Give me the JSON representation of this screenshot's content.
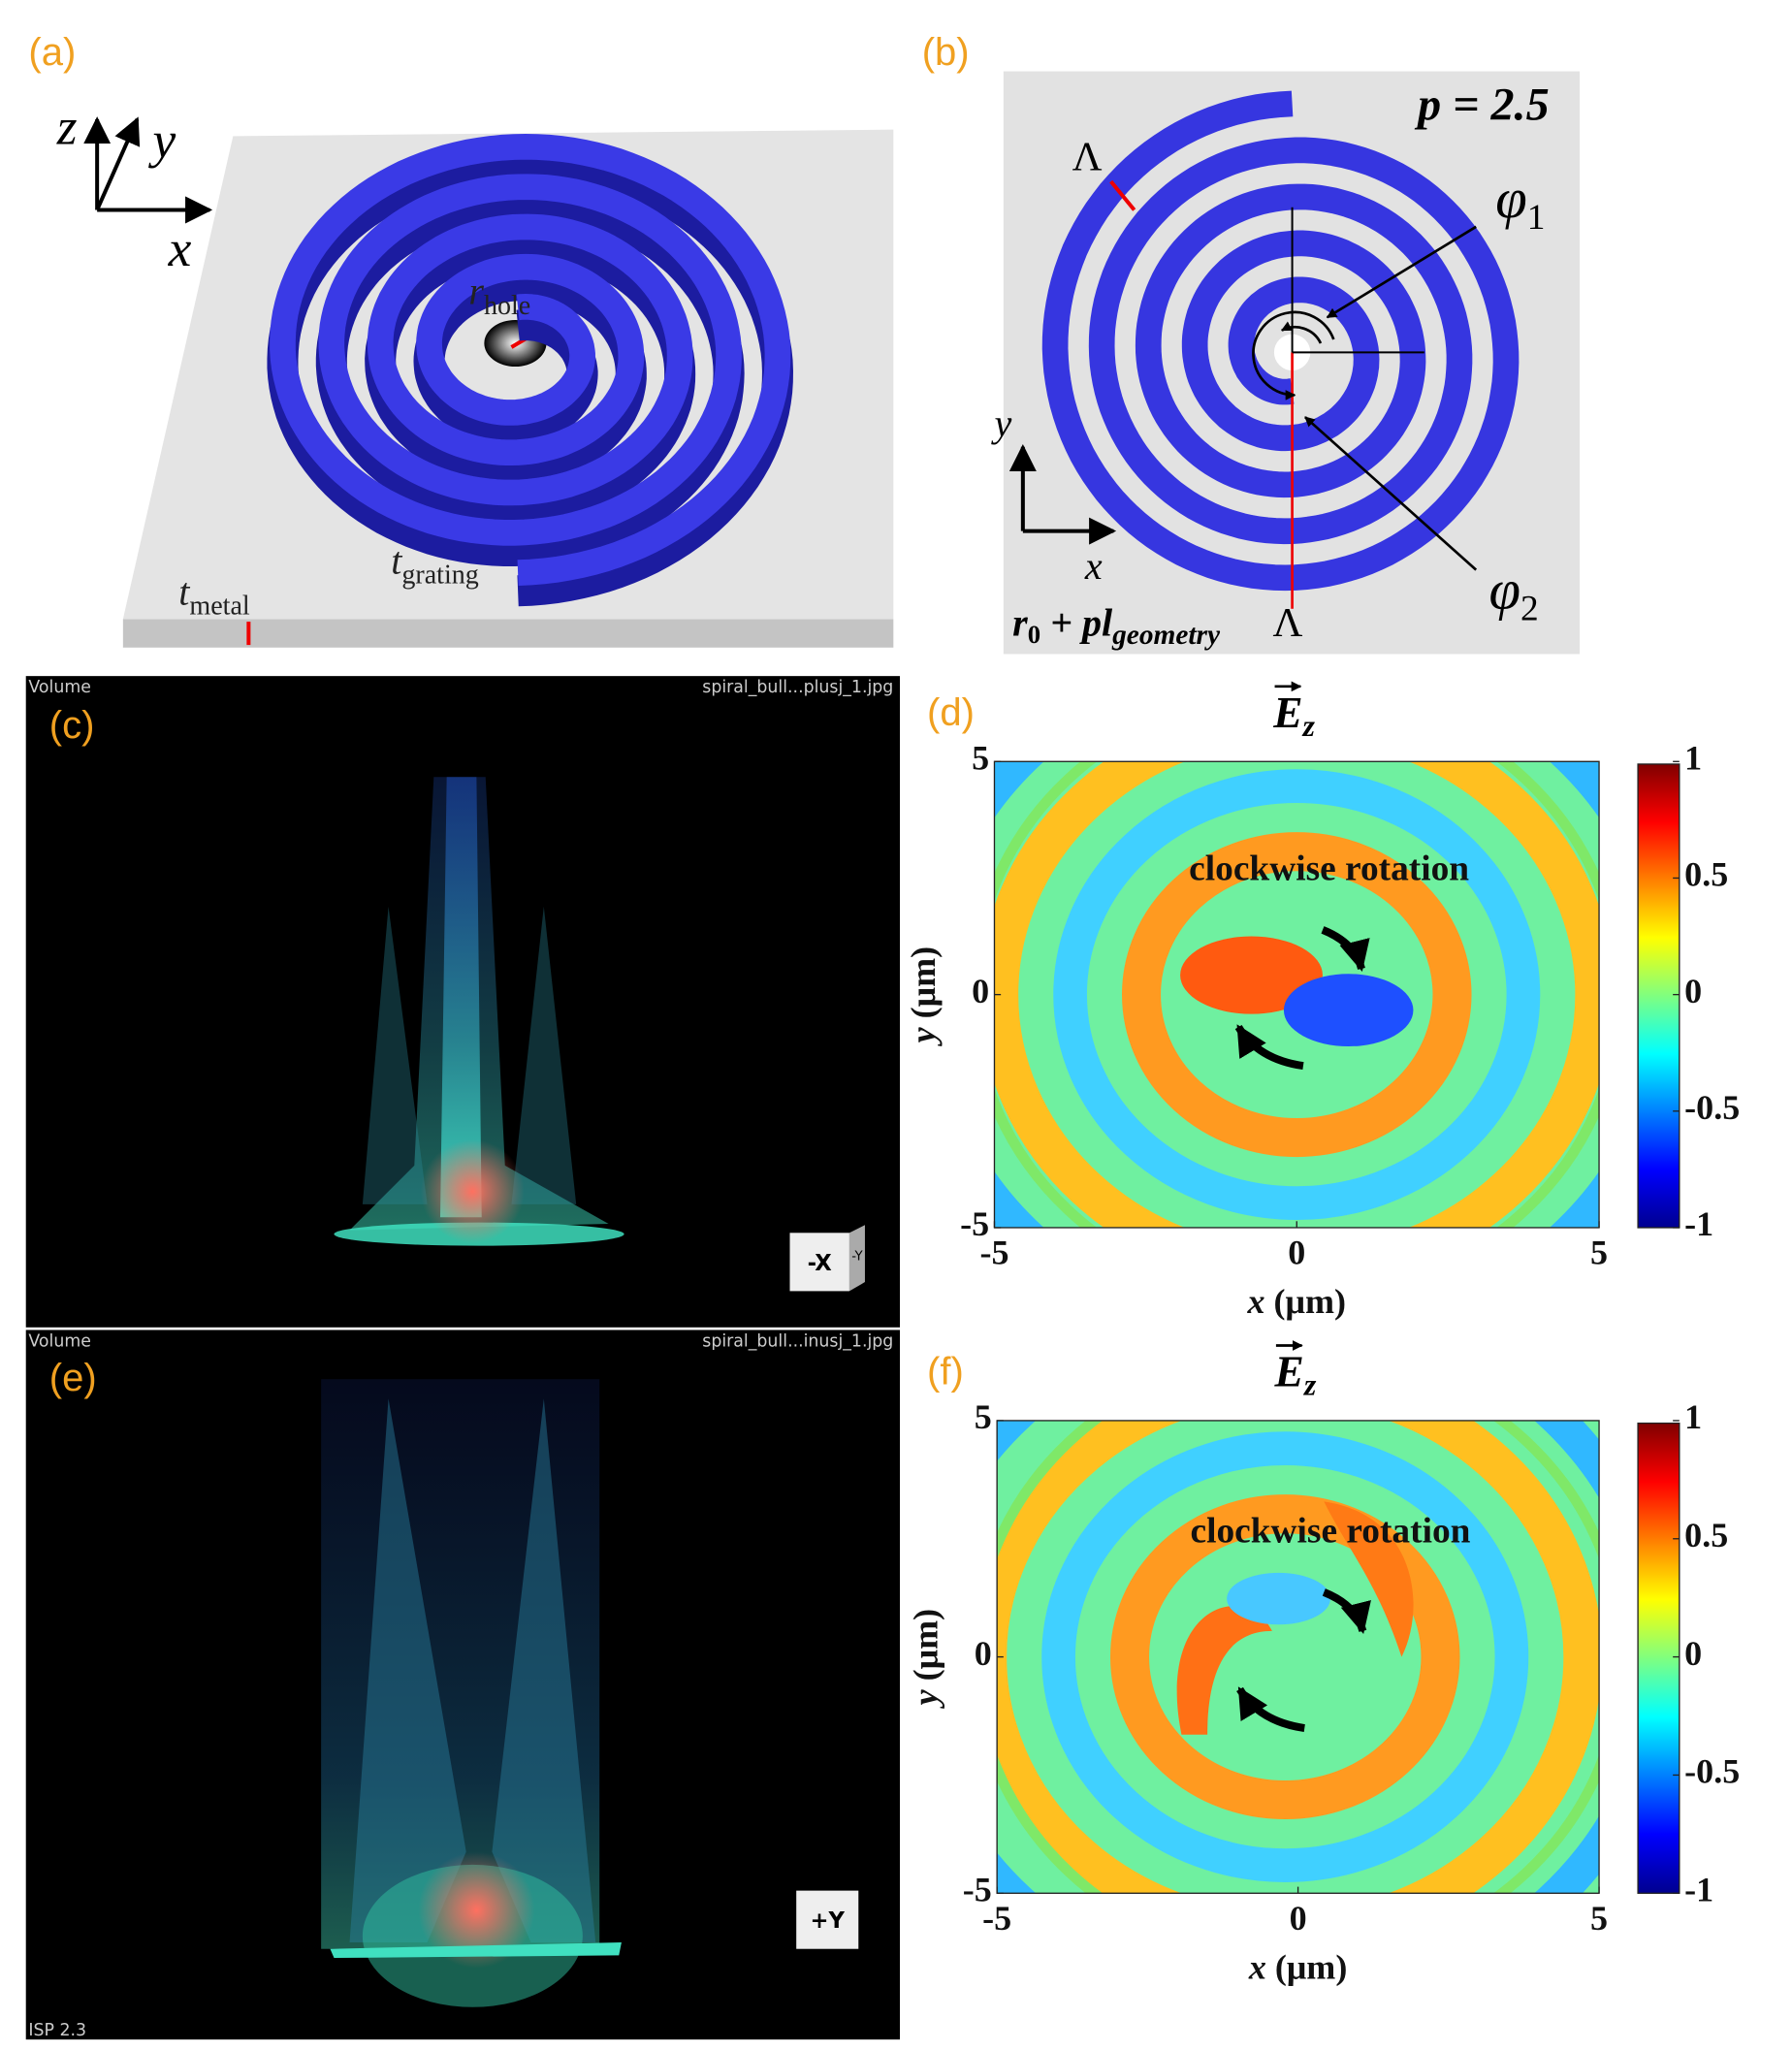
{
  "panels": {
    "a": {
      "label": "(a)",
      "axis_z": "z",
      "axis_y": "y",
      "axis_x": "x",
      "r_hole": {
        "base": "r",
        "sub": "hole"
      },
      "t_grating": {
        "base": "t",
        "sub": "grating"
      },
      "t_metal": {
        "base": "t",
        "sub": "metal"
      }
    },
    "b": {
      "label": "(b)",
      "p": "p = 2.5",
      "lambda_top": "Λ",
      "lambda_bottom": "Λ",
      "phi1": {
        "base": "φ",
        "sub": "1"
      },
      "phi2": {
        "base": "φ",
        "sub": "2"
      },
      "axis_y": "y",
      "axis_x": "x",
      "radius": {
        "base": "r",
        "sub": "0",
        "mid": " + pl",
        "sub2": "geometry"
      }
    },
    "c": {
      "label": "(c)",
      "corner_left": "Volume",
      "corner_right": "spiral_bull...plusj_1.jpg",
      "cube_front": "-X",
      "cube_side": "-Y"
    },
    "e": {
      "label": "(e)",
      "corner_left": "Volume",
      "corner_right": "spiral_bull...inusj_1.jpg",
      "cube_front": "+Y",
      "footer": "ISP 2.3"
    }
  },
  "heatmaps": [
    {
      "label": "(d)",
      "title": {
        "base": "E",
        "sub": "z"
      },
      "annotation": "clockwise rotation",
      "xlabel": {
        "var": "x",
        "unit": " (μm)"
      },
      "ylabel": {
        "var": "y",
        "unit": " (μm)"
      },
      "xlim": [
        -5,
        5
      ],
      "ylim": [
        -5,
        5
      ],
      "xticks": [
        -5,
        0,
        5
      ],
      "yticks": [
        -5,
        0,
        5
      ],
      "clim": [
        -1,
        1
      ],
      "cticks": [
        -1,
        -0.5,
        0,
        0.5,
        1
      ]
    },
    {
      "label": "(f)",
      "title": {
        "base": "E",
        "sub": "z"
      },
      "annotation": "clockwise rotation",
      "xlabel": {
        "var": "x",
        "unit": " (μm)"
      },
      "ylabel": {
        "var": "y",
        "unit": " (μm)"
      },
      "xlim": [
        -5,
        5
      ],
      "ylim": [
        -5,
        5
      ],
      "xticks": [
        -5,
        0,
        5
      ],
      "yticks": [
        -5,
        0,
        5
      ],
      "clim": [
        -1,
        1
      ],
      "cticks": [
        -1,
        -0.5,
        0,
        0.5,
        1
      ]
    }
  ]
}
